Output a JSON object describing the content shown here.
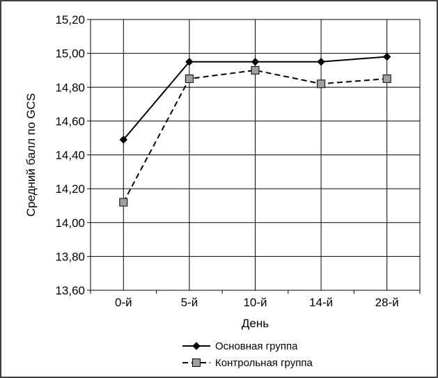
{
  "chart_data": {
    "type": "line",
    "title": "",
    "xlabel": "День",
    "ylabel": "Средний балл по GCS",
    "categories": [
      "0-й",
      "5-й",
      "10-й",
      "14-й",
      "28-й"
    ],
    "ylim": [
      13.6,
      15.2
    ],
    "yticks": [
      13.6,
      13.8,
      14.0,
      14.2,
      14.4,
      14.6,
      14.8,
      15.0,
      15.2
    ],
    "ytick_labels": [
      "13,60",
      "13,80",
      "14,00",
      "14,20",
      "14,40",
      "14,60",
      "14,80",
      "15,00",
      "15,20"
    ],
    "grid": "horizontal and vertical",
    "legend_position": "bottom",
    "series": [
      {
        "name": "Основная группа",
        "values": [
          14.49,
          14.95,
          14.95,
          14.95,
          14.98
        ],
        "line_style": "solid",
        "marker": "diamond",
        "marker_color": "#000000",
        "line_color": "#000000"
      },
      {
        "name": "Контрольная группа",
        "values": [
          14.12,
          14.85,
          14.9,
          14.82,
          14.85
        ],
        "line_style": "dashed",
        "marker": "square",
        "marker_color": "#a0a0a0",
        "line_color": "#000000"
      }
    ]
  }
}
